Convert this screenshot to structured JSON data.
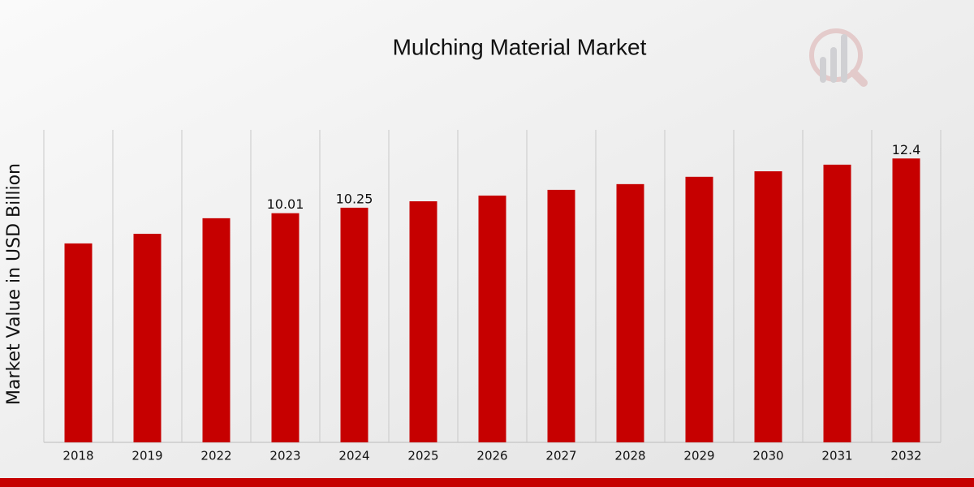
{
  "chart_data": {
    "type": "bar",
    "title": "Mulching Material Market",
    "y_label": "Market Value in USD Billion",
    "categories": [
      "2018",
      "2019",
      "2022",
      "2023",
      "2024",
      "2025",
      "2026",
      "2027",
      "2028",
      "2029",
      "2030",
      "2031",
      "2032"
    ],
    "values": [
      8.69,
      9.11,
      9.79,
      10.01,
      10.25,
      10.53,
      10.78,
      11.03,
      11.28,
      11.6,
      11.84,
      12.13,
      12.4
    ],
    "value_labels": [
      null,
      null,
      null,
      "10.01",
      "10.25",
      null,
      null,
      null,
      null,
      null,
      null,
      null,
      "12.4"
    ],
    "color": "#c60000",
    "ylim": [
      0,
      13.65
    ]
  }
}
